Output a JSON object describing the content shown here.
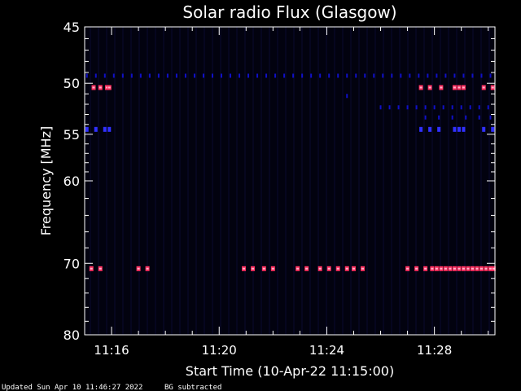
{
  "chart_data": {
    "type": "heatmap",
    "title": "Solar radio Flux (Glasgow)",
    "ylabel": "Frequency [MHz]",
    "xlabel": "Start Time (10-Apr-22 11:15:00)",
    "footer_updated": "Updated Sun Apr 10 11:46:27 2022",
    "footer_note": "BG subtracted",
    "x_range_minutes": [
      "11:15:00",
      "11:30:15"
    ],
    "x_ticks": [
      "11:16",
      "11:20",
      "11:24",
      "11:28"
    ],
    "y_ticks": [
      "45",
      "50",
      "55",
      "60",
      "70",
      "80"
    ],
    "y_range_mhz": [
      45,
      80
    ],
    "y_scale": "log",
    "colors": {
      "background": "#000000",
      "plot_background": "#02020f",
      "axis": "#ffffff",
      "weak": "#1010c8",
      "medium": "#3030ff",
      "strong": "#ff3060",
      "peak": "#ffb0c8"
    },
    "emission_bands": [
      {
        "freq_mhz": 49.3,
        "intensity": "weak",
        "times": [
          "11:15:05",
          "11:15:25",
          "11:15:45",
          "11:16:05",
          "11:16:25",
          "11:16:45",
          "11:17:05",
          "11:17:25",
          "11:17:45",
          "11:18:05",
          "11:18:25",
          "11:18:45",
          "11:19:05",
          "11:19:25",
          "11:19:45",
          "11:20:05",
          "11:20:25",
          "11:20:45",
          "11:21:05",
          "11:21:25",
          "11:21:45",
          "11:22:05",
          "11:22:25",
          "11:22:45",
          "11:23:05",
          "11:23:25",
          "11:23:45",
          "11:24:05",
          "11:24:25",
          "11:24:45",
          "11:25:05",
          "11:25:25",
          "11:25:45",
          "11:26:05",
          "11:26:25",
          "11:26:45",
          "11:27:05",
          "11:27:25",
          "11:27:45",
          "11:28:05",
          "11:28:25",
          "11:28:45",
          "11:29:05",
          "11:29:25",
          "11:29:45",
          "11:30:05"
        ]
      },
      {
        "freq_mhz": 50.4,
        "intensity": "strong",
        "times": [
          "11:15:20",
          "11:15:35",
          "11:15:50",
          "11:15:55",
          "11:27:30",
          "11:27:50",
          "11:28:15",
          "11:28:45",
          "11:28:55",
          "11:29:05",
          "11:29:50",
          "11:30:10"
        ]
      },
      {
        "freq_mhz": 51.2,
        "intensity": "weak",
        "times": [
          "11:24:45"
        ]
      },
      {
        "freq_mhz": 52.3,
        "intensity": "weak",
        "times": [
          "11:26:00",
          "11:26:20",
          "11:26:40",
          "11:27:00",
          "11:27:20",
          "11:27:40",
          "11:28:00",
          "11:28:20",
          "11:28:40",
          "11:29:00",
          "11:29:20",
          "11:29:40",
          "11:30:00"
        ]
      },
      {
        "freq_mhz": 53.3,
        "intensity": "weak",
        "times": [
          "11:27:40",
          "11:28:10",
          "11:28:40",
          "11:29:10",
          "11:29:40",
          "11:30:05"
        ]
      },
      {
        "freq_mhz": 54.5,
        "intensity": "medium",
        "times": [
          "11:15:05",
          "11:15:25",
          "11:15:45",
          "11:15:55",
          "11:27:30",
          "11:27:50",
          "11:28:10",
          "11:28:45",
          "11:28:55",
          "11:29:05",
          "11:29:50",
          "11:30:10"
        ]
      },
      {
        "freq_mhz": 70.7,
        "intensity": "strong",
        "times": [
          "11:15:15",
          "11:15:35",
          "11:17:00",
          "11:17:20",
          "11:20:55",
          "11:21:15",
          "11:21:40",
          "11:22:00",
          "11:22:55",
          "11:23:15",
          "11:23:45",
          "11:24:05",
          "11:24:25",
          "11:24:45",
          "11:25:00",
          "11:25:20",
          "11:27:00",
          "11:27:20",
          "11:27:40",
          "11:27:55",
          "11:28:05",
          "11:28:15",
          "11:28:25",
          "11:28:35",
          "11:28:45",
          "11:28:55",
          "11:29:05",
          "11:29:15",
          "11:29:25",
          "11:29:35",
          "11:29:45",
          "11:29:55",
          "11:30:05",
          "11:30:12"
        ]
      }
    ]
  }
}
